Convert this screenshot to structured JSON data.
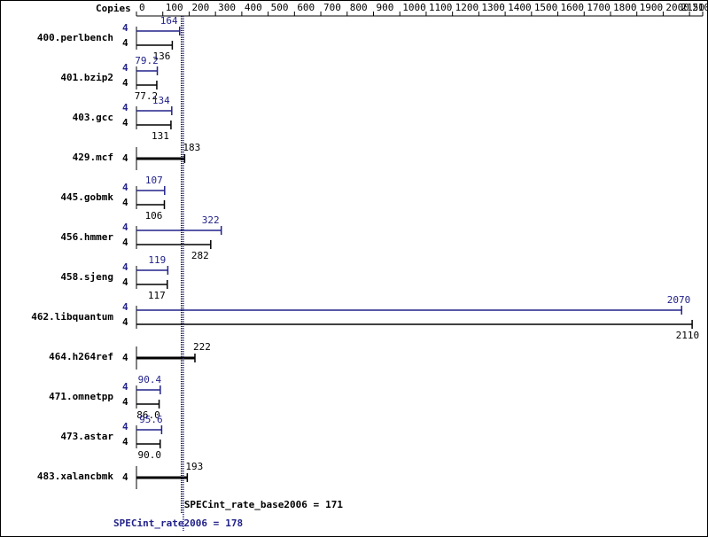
{
  "chart_data": {
    "type": "spec-bar",
    "axis_label": "Copies",
    "categories": [
      "400.perlbench",
      "401.bzip2",
      "403.gcc",
      "429.mcf",
      "445.gobmk",
      "456.hmmer",
      "458.sjeng",
      "462.libquantum",
      "464.h264ref",
      "471.omnetpp",
      "473.astar",
      "483.xalancbmk"
    ],
    "series": [
      {
        "name": "peak",
        "color": "#22228b",
        "copies": [
          4,
          4,
          4,
          null,
          4,
          4,
          4,
          4,
          null,
          4,
          4,
          null
        ],
        "values": [
          164,
          79.2,
          134,
          null,
          107,
          322,
          119,
          2070,
          null,
          90.4,
          95.6,
          null
        ]
      },
      {
        "name": "base",
        "color": "#000000",
        "copies": [
          4,
          4,
          4,
          4,
          4,
          4,
          4,
          4,
          4,
          4,
          4,
          4
        ],
        "values": [
          136,
          77.2,
          131,
          183,
          106,
          282,
          117,
          2110,
          222,
          86.0,
          90.0,
          193
        ],
        "value_labels": [
          "136",
          "77.2",
          "131",
          "183",
          "106",
          "282",
          "117",
          "2110",
          "222",
          "86.0",
          "90.0",
          "193"
        ]
      }
    ],
    "summary_base": {
      "label": "SPECint_rate_base2006 =",
      "value": 171
    },
    "summary_peak": {
      "label": "SPECint_rate2006 =",
      "value": 178
    },
    "xlim": [
      0,
      2150
    ],
    "xticks": [
      0,
      100,
      200,
      300,
      400,
      500,
      600,
      700,
      800,
      900,
      1000,
      1100,
      1200,
      1300,
      1400,
      1500,
      1600,
      1700,
      1800,
      1900,
      2000,
      2100,
      2150
    ]
  }
}
